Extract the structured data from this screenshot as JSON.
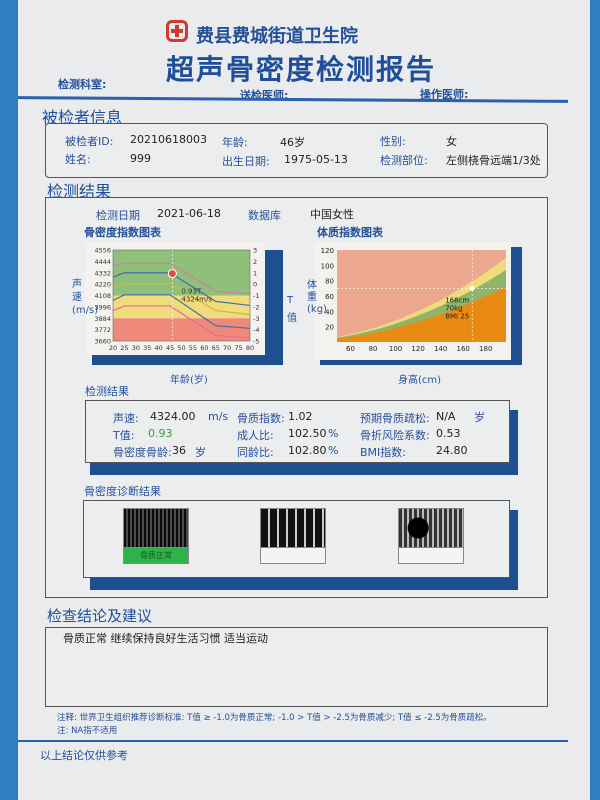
{
  "header": {
    "hospital": "费县费城街道卫生院",
    "title": "超声骨密度检测报告",
    "dept_label": "检测科室:",
    "sender_label": "送检医师:",
    "operator_label": "操作医师:"
  },
  "patient": {
    "section": "被检者信息",
    "id_label": "被检者ID:",
    "id": "20210618003",
    "age_label": "年龄:",
    "age": "46岁",
    "sex_label": "性别:",
    "sex": "女",
    "name_label": "姓名:",
    "name": "999",
    "dob_label": "出生日期:",
    "dob": "1975-05-13",
    "site_label": "检测部位:",
    "site": "左侧桡骨远端1/3处"
  },
  "results": {
    "section": "检测结果",
    "date_label": "检测日期",
    "date": "2021-06-18",
    "db_label": "数据库",
    "db": "中国女性",
    "bmd_chart_title": "骨密度指数图表",
    "bmi_chart_title": "体质指数图表",
    "sub": "检测结果",
    "speed_label": "声速:",
    "speed": "4324.00",
    "speed_unit": "m/s",
    "t_label": "T值:",
    "t": "0.93",
    "boneage_label": "骨密度骨龄:",
    "boneage": "36",
    "boneage_unit": "岁",
    "index_label": "骨质指数:",
    "index": "1.02",
    "adult_label": "成人比:",
    "adult": "102.50",
    "adult_unit": "%",
    "same_label": "同龄比:",
    "same": "102.80",
    "same_unit": "%",
    "osteo_label": "预期骨质疏松:",
    "osteo": "N/A",
    "osteo_unit": "岁",
    "risk_label": "骨折风险系数:",
    "risk": "0.53",
    "bmi_label": "BMI指数:",
    "bmi": "24.80",
    "diag_title": "骨密度诊断结果",
    "diag": [
      "骨质正常",
      "",
      ""
    ],
    "diag_color": "#2db34a"
  },
  "chart_data": [
    {
      "type": "line",
      "title": "骨密度指数图表",
      "xlabel": "年龄(岁)",
      "ylabel": "声速(m/s)",
      "y2label": "T值",
      "xticks": [
        20,
        25,
        30,
        35,
        40,
        45,
        50,
        55,
        60,
        65,
        70,
        75,
        80
      ],
      "yticks": [
        4556,
        4444,
        4332,
        4220,
        4108,
        3996,
        3884,
        3772,
        3660
      ],
      "y2ticks": [
        3,
        2,
        1,
        0,
        -1,
        -2,
        -3,
        -4,
        -5
      ],
      "xlim": [
        20,
        80
      ],
      "ylim": [
        3660,
        4556
      ],
      "bands": [
        {
          "from": 4108,
          "to": 4556,
          "color": "#8fc07a"
        },
        {
          "from": 3884,
          "to": 4108,
          "color": "#f0dc7a"
        },
        {
          "from": 3660,
          "to": 3884,
          "color": "#ef8a7a"
        }
      ],
      "series": [
        {
          "color": "#d77aa0",
          "x": [
            20,
            25,
            45,
            65,
            80
          ],
          "y": [
            4400,
            4425,
            4425,
            4150,
            4125
          ]
        },
        {
          "color": "#4a6aa8",
          "x": [
            20,
            25,
            45,
            65,
            80
          ],
          "y": [
            4290,
            4332,
            4332,
            4050,
            4010
          ]
        },
        {
          "color": "#d7b640",
          "x": [
            20,
            25,
            45,
            65,
            80
          ],
          "y": [
            4180,
            4225,
            4225,
            3960,
            3920
          ]
        },
        {
          "color": "#4a6aa8",
          "x": [
            20,
            25,
            45,
            65,
            80
          ],
          "y": [
            4060,
            4115,
            4115,
            3810,
            3785
          ]
        },
        {
          "color": "#e56a9a",
          "x": [
            20,
            25,
            45,
            65,
            80
          ],
          "y": [
            3960,
            4005,
            4005,
            3715,
            3690
          ]
        }
      ],
      "point": {
        "x": 46,
        "y": 4324,
        "label1": "0.93T",
        "label2": "4324m/s"
      }
    },
    {
      "type": "area",
      "title": "体质指数图表",
      "xlabel": "身高(cm)",
      "ylabel": "体重(kg)",
      "xticks": [
        60,
        80,
        100,
        120,
        140,
        160,
        180
      ],
      "yticks": [
        120,
        100,
        80,
        60,
        40,
        20
      ],
      "xlim": [
        48,
        198
      ],
      "ylim": [
        0,
        120
      ],
      "bands": [
        {
          "bmi": 18.5,
          "color": "#e98a12"
        },
        {
          "bmi": 24,
          "color": "#8fb56a"
        },
        {
          "bmi": 28,
          "color": "#eedc7a"
        }
      ],
      "bg": "#eba88e",
      "point": {
        "x": 168,
        "y": 70,
        "label1": "168cm",
        "label2": "70kg",
        "label3": "BMI 25"
      }
    }
  ],
  "conclusion": {
    "section": "检查结论及建议",
    "text": "骨质正常 继续保持良好生活习惯 适当运动"
  },
  "notes": [
    "注释: 世界卫生组织推荐诊断标准: T值 ≥ -1.0为骨质正常; -1.0 > T值 > -2.5为骨质减少; T值 ≤ -2.5为骨质疏松。",
    "注: NA指不适用"
  ],
  "footer": "以上结论仅供参考"
}
